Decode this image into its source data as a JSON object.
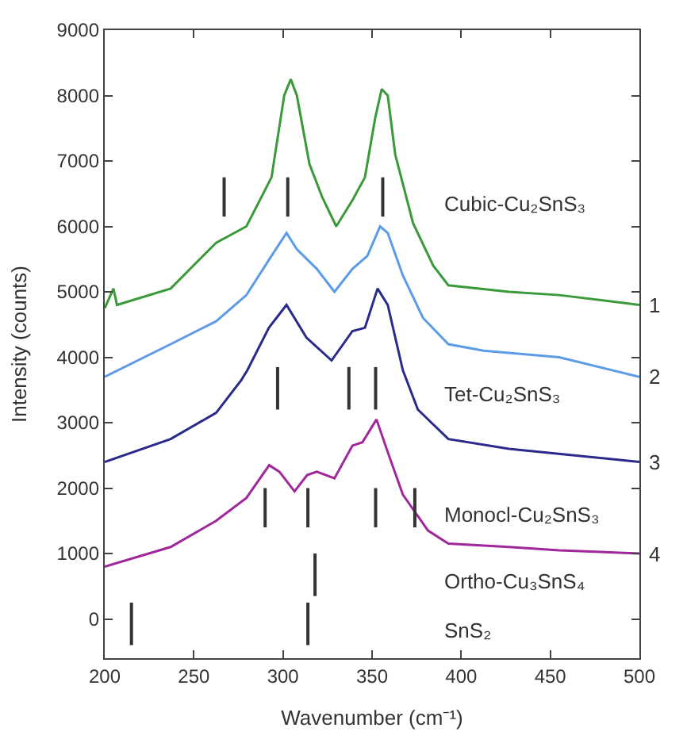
{
  "chart_data": {
    "type": "line",
    "xlabel": "Wavenumber (cm⁻¹)",
    "ylabel": "Intensity (counts)",
    "xlim": [
      200,
      500
    ],
    "xticks": [
      200,
      250,
      300,
      350,
      400,
      450,
      500
    ],
    "ylim": [
      -600,
      9000
    ],
    "yticks": [
      0,
      1000,
      2000,
      3000,
      4000,
      5000,
      6000,
      7000,
      8000,
      9000
    ],
    "grid": false,
    "legend": false,
    "marker": "none",
    "line_style": "solid",
    "series": [
      {
        "name": "1",
        "color": "#3a9a3a",
        "x": [
          200,
          204.9,
          206.9,
          237,
          262.5,
          279.5,
          293.6,
          300.7,
          304.4,
          307.8,
          314.9,
          322,
          329.9,
          339,
          346,
          351.7,
          355.4,
          358.8,
          363,
          373,
          384.3,
          392.8,
          426.8,
          455,
          500
        ],
        "values": [
          4750,
          5050,
          4800,
          5050,
          5750,
          6000,
          6750,
          8000,
          8250,
          8000,
          6950,
          6450,
          6000,
          6400,
          6750,
          7650,
          8100,
          8000,
          7100,
          6050,
          5400,
          5100,
          5000,
          4950,
          4800
        ]
      },
      {
        "name": "2",
        "color": "#5b9be8",
        "x": [
          200,
          237,
          262.5,
          279.5,
          293.6,
          302,
          307.8,
          319,
          328.9,
          339,
          347.4,
          354.5,
          358.8,
          367.3,
          378.6,
          392.8,
          412.6,
          455,
          500
        ],
        "values": [
          3700,
          4200,
          4550,
          4950,
          5550,
          5900,
          5650,
          5350,
          5000,
          5350,
          5550,
          6000,
          5900,
          5250,
          4600,
          4200,
          4100,
          4000,
          3700
        ]
      },
      {
        "name": "3",
        "color": "#2a2a8c",
        "x": [
          200,
          237,
          262.5,
          276.6,
          280,
          292.1,
          302,
          313.2,
          327.3,
          339,
          346,
          353.1,
          358.8,
          367.3,
          375.7,
          392.8,
          426.8,
          500
        ],
        "values": [
          2400,
          2750,
          3150,
          3650,
          3800,
          4450,
          4800,
          4300,
          3950,
          4400,
          4450,
          5050,
          4800,
          3800,
          3200,
          2750,
          2600,
          2400
        ]
      },
      {
        "name": "4",
        "color": "#a0279a",
        "x": [
          200,
          237,
          262.5,
          279.5,
          292.3,
          298,
          306.5,
          313.6,
          319,
          328.9,
          339,
          344.6,
          352.5,
          358.8,
          367.3,
          381.4,
          392.8,
          426.8,
          455,
          500
        ],
        "values": [
          800,
          1100,
          1500,
          1850,
          2350,
          2250,
          1950,
          2200,
          2250,
          2150,
          2650,
          2700,
          3050,
          2550,
          1900,
          1350,
          1150,
          1100,
          1050,
          1000
        ]
      },
      {
        "color": "#333333",
        "x": [
          267,
          267,
          285,
          302.7,
          302.7,
          330,
          356,
          356
        ],
        "values": [
          6150,
          6750,
          null,
          6150,
          6750,
          null,
          6150,
          6750
        ]
      },
      {
        "color": "#333333",
        "x": [
          297,
          297,
          317,
          337,
          337,
          345,
          352,
          352
        ],
        "values": [
          3200,
          3850,
          null,
          3200,
          3850,
          null,
          3200,
          3850
        ]
      },
      {
        "color": "#333333",
        "x": [
          290,
          290,
          302,
          314,
          314,
          333,
          352,
          352,
          363,
          374,
          374
        ],
        "values": [
          1400,
          2000,
          null,
          1400,
          2000,
          null,
          1400,
          2000,
          null,
          1400,
          2000
        ]
      },
      {
        "color": "#333333",
        "x": [
          318,
          318
        ],
        "values": [
          350,
          1000
        ]
      },
      {
        "color": "#333333",
        "x": [
          215,
          215,
          265,
          314,
          314
        ],
        "values": [
          -400,
          250,
          null,
          -400,
          250
        ]
      }
    ],
    "annotations": [
      "Cubic-Cu₂SnS₃",
      "Tet-Cu₂SnS₃",
      "Monocl-Cu₂SnS₃",
      "Ortho-Cu₃SnS₄",
      "SnS₂"
    ]
  }
}
